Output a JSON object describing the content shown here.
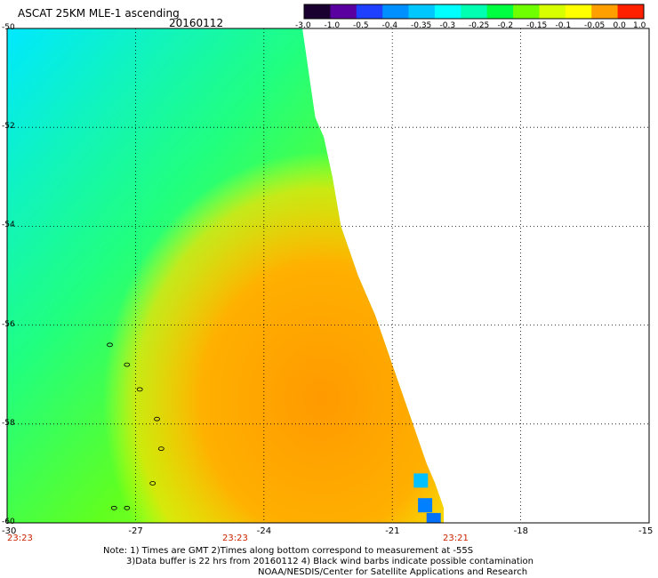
{
  "title": "ASCAT 25KM MLE-1 ascending",
  "date": "20160112",
  "colorbar": {
    "labels": [
      "-3.0",
      "-1.0",
      "-0.5",
      "-0.4",
      "-0.35",
      "-0.3",
      "-0.25",
      "-0.2",
      "-0.15",
      "-0.1",
      "-0.05",
      "0.0",
      "1.0"
    ],
    "colors": [
      "#1a0030",
      "#5a00a0",
      "#2040ff",
      "#0090ff",
      "#00c8ff",
      "#00ffff",
      "#00ffb0",
      "#00ff40",
      "#70ff00",
      "#d8ff00",
      "#ffff00",
      "#ffa000",
      "#ff2000"
    ]
  },
  "axes": {
    "y_ticks": [
      "-50",
      "-52",
      "-54",
      "-56",
      "-58",
      "-60"
    ],
    "x_ticks": [
      "-30",
      "-27",
      "-24",
      "-21",
      "-18",
      "-15"
    ]
  },
  "times": [
    "23:23",
    "23:23",
    "23:21"
  ],
  "notes": [
    "Note: 1) Times are GMT 2)Times along bottom correspond to measurement at -55S",
    "3)Data buffer is 22 hrs from 20160112 4) Black wind barbs indicate possible contamination",
    "NOAA/NESDIS/Center for Satellite Applications and Research"
  ],
  "map_data": {
    "lon_range": [
      -30,
      -15
    ],
    "lat_range": [
      -60,
      -50
    ],
    "swath_edge": [
      [
        -50.0,
        -23.1
      ],
      [
        -51.2,
        -22.9
      ],
      [
        -51.8,
        -22.8
      ],
      [
        -52.2,
        -22.6
      ],
      [
        -52.6,
        -22.5
      ],
      [
        -53.0,
        -22.4
      ],
      [
        -53.5,
        -22.3
      ],
      [
        -54.0,
        -22.2
      ],
      [
        -54.5,
        -22.0
      ],
      [
        -55.0,
        -21.8
      ],
      [
        -55.4,
        -21.6
      ],
      [
        -55.8,
        -21.4
      ],
      [
        -56.3,
        -21.2
      ],
      [
        -56.8,
        -21.0
      ],
      [
        -57.3,
        -20.8
      ],
      [
        -57.8,
        -20.6
      ],
      [
        -58.3,
        -20.4
      ],
      [
        -58.8,
        -20.2
      ],
      [
        -59.2,
        -20.0
      ],
      [
        -59.7,
        -19.8
      ],
      [
        -60.0,
        -19.8
      ]
    ],
    "islands": [
      [
        -56.4,
        -27.6
      ],
      [
        -56.8,
        -27.2
      ],
      [
        -57.3,
        -26.9
      ],
      [
        -57.9,
        -26.5
      ],
      [
        -58.5,
        -26.4
      ],
      [
        -59.2,
        -26.6
      ],
      [
        -59.7,
        -27.2
      ],
      [
        -59.7,
        -27.5
      ]
    ]
  }
}
